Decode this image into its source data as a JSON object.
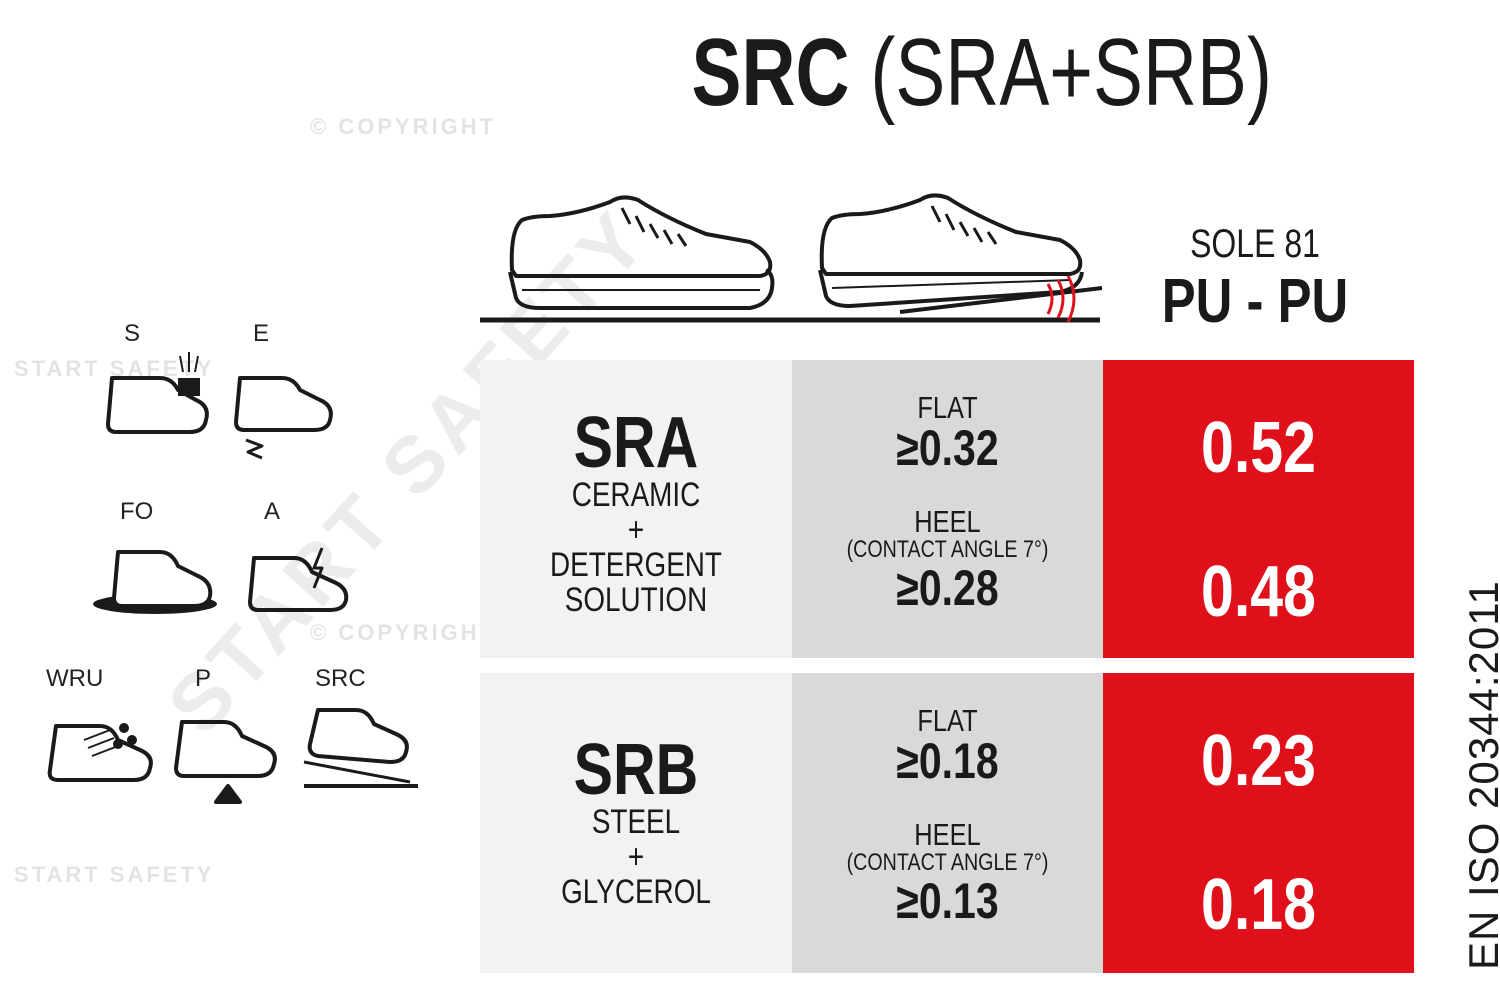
{
  "title": {
    "bold": "SRC",
    "rest": " (SRA+SRB)"
  },
  "watermarks": {
    "copyright": "© COPYRIGHT",
    "brand": "START SAFETY",
    "brand_big": "START SAFETY"
  },
  "icons": [
    {
      "label": "S",
      "icon": "shoe-weight-icon"
    },
    {
      "label": "E",
      "icon": "shoe-energy-absorption-icon"
    },
    {
      "label": "FO",
      "icon": "shoe-oil-resistant-icon"
    },
    {
      "label": "A",
      "icon": "shoe-antistatic-icon"
    },
    {
      "label": "WRU",
      "icon": "shoe-water-resistant-icon"
    },
    {
      "label": "P",
      "icon": "shoe-puncture-resistant-icon"
    },
    {
      "label": "SRC",
      "icon": "shoe-slip-resistant-icon"
    }
  ],
  "sole": {
    "name": "SOLE 81",
    "material": "PU - PU"
  },
  "rows": [
    {
      "code": "SRA",
      "surface": [
        "CERAMIC",
        "+",
        "DETERGENT",
        "SOLUTION"
      ],
      "flat": {
        "label": "FLAT",
        "threshold": "≥0.32",
        "result": "0.52"
      },
      "heel": {
        "label": "HEEL",
        "sub": "(CONTACT ANGLE 7°)",
        "threshold": "≥0.28",
        "result": "0.48"
      }
    },
    {
      "code": "SRB",
      "surface": [
        "STEEL",
        "+",
        "GLYCEROL"
      ],
      "flat": {
        "label": "FLAT",
        "threshold": "≥0.18",
        "result": "0.23"
      },
      "heel": {
        "label": "HEEL",
        "sub": "(CONTACT ANGLE 7°)",
        "threshold": "≥0.13",
        "result": "0.18"
      }
    }
  ],
  "standard": "EN ISO 20344:2011",
  "colors": {
    "accent_red": "#e0101a",
    "cell_light": "#f2f2f2",
    "cell_mid": "#d9d9d9"
  }
}
